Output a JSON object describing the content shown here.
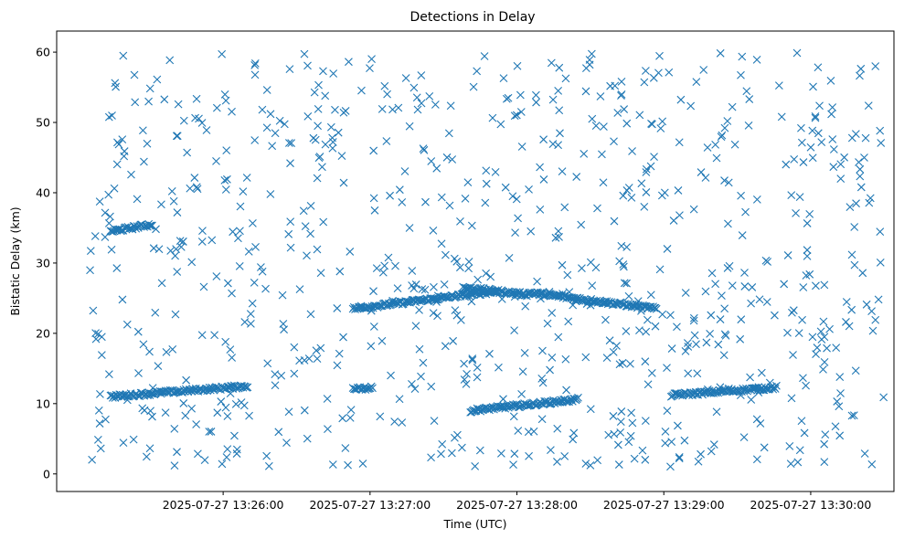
{
  "chart_data": {
    "type": "scatter",
    "title": "Detections in Delay",
    "xlabel": "Time (UTC)",
    "ylabel": "Bistatic Delay (km)",
    "marker": "x",
    "color": "#1f77b4",
    "grid": false,
    "legend": "none",
    "x_is_datetime": true,
    "xlim": [
      "2025-07-27 13:24:52",
      "2025-07-27 13:30:34"
    ],
    "ylim": [
      -2.5,
      63
    ],
    "x_ticks": [
      "2025-07-27 13:26:00",
      "2025-07-27 13:27:00",
      "2025-07-27 13:28:00",
      "2025-07-27 13:29:00",
      "2025-07-27 13:30:00"
    ],
    "y_ticks": [
      "0",
      "10",
      "20",
      "30",
      "40",
      "50",
      "60"
    ],
    "tracks": [
      {
        "x_start": "2025-07-27 13:25:14",
        "x_end": "2025-07-27 13:25:31",
        "y_start": 34.5,
        "y_end": 35.5
      },
      {
        "x_start": "2025-07-27 13:25:14",
        "x_end": "2025-07-27 13:26:10",
        "y_start": 11.0,
        "y_end": 12.5
      },
      {
        "x_start": "2025-07-27 13:26:53",
        "x_end": "2025-07-27 13:27:52",
        "y_start": 23.5,
        "y_end": 26.0
      },
      {
        "x_start": "2025-07-27 13:27:38",
        "x_end": "2025-07-27 13:28:05",
        "y_start": 26.5,
        "y_end": 25.5
      },
      {
        "x_start": "2025-07-27 13:28:05",
        "x_end": "2025-07-27 13:28:57",
        "y_start": 25.8,
        "y_end": 23.5
      },
      {
        "x_start": "2025-07-27 13:26:53",
        "x_end": "2025-07-27 13:27:01",
        "y_start": 12.2,
        "y_end": 12.2
      },
      {
        "x_start": "2025-07-27 13:27:41",
        "x_end": "2025-07-27 13:28:25",
        "y_start": 9.0,
        "y_end": 10.6
      },
      {
        "x_start": "2025-07-27 13:29:03",
        "x_end": "2025-07-27 13:29:46",
        "y_start": 11.2,
        "y_end": 12.3
      }
    ],
    "clutter": {
      "count": 800,
      "x_range": [
        "2025-07-27 13:25:05",
        "2025-07-27 13:30:30"
      ],
      "y_range": [
        1,
        60
      ]
    }
  }
}
